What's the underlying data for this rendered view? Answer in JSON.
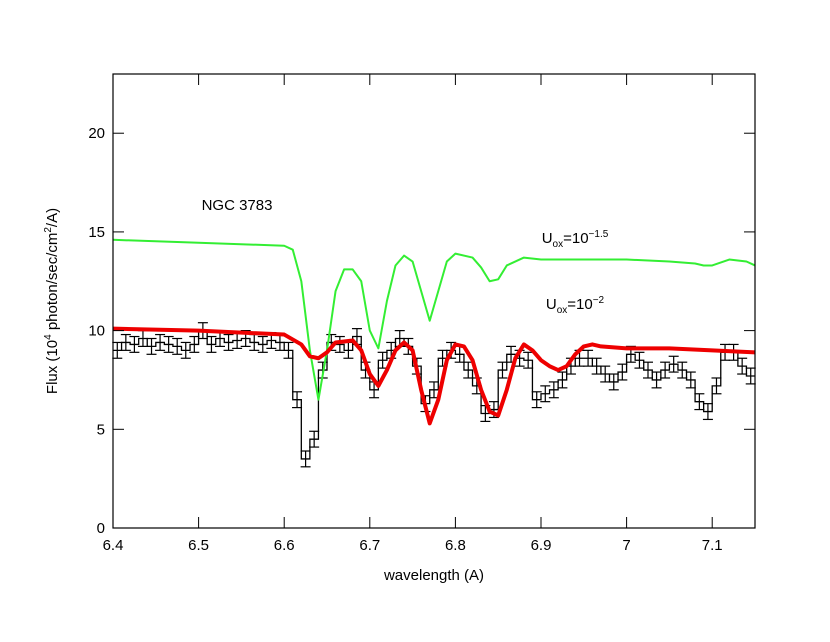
{
  "chart_data": {
    "type": "line",
    "xlabel_parts": [
      "wavelength (A)"
    ],
    "ylabel_parts": [
      "Flux (10",
      "4",
      " photon/sec/cm",
      "2",
      "/A)"
    ],
    "annotations": [
      [
        "NGC 3783"
      ],
      [
        "U",
        "ox",
        "=10",
        "−1.5"
      ],
      [
        "U",
        "ox",
        "=10",
        "−2"
      ]
    ],
    "annotation_color": "#1c1cb4",
    "xlim": [
      6.4,
      7.15
    ],
    "ylim": [
      0,
      23
    ],
    "xticks": [
      6.4,
      6.5,
      6.6,
      6.7,
      6.8,
      6.9,
      7,
      7.1
    ],
    "yticks": [
      0,
      5,
      10,
      15,
      20
    ],
    "series": [
      {
        "color": "#33ee33",
        "width": 2,
        "x": [
          6.4,
          6.5,
          6.6,
          6.61,
          6.62,
          6.63,
          6.64,
          6.65,
          6.66,
          6.67,
          6.68,
          6.69,
          6.7,
          6.71,
          6.72,
          6.73,
          6.74,
          6.75,
          6.76,
          6.77,
          6.78,
          6.79,
          6.8,
          6.82,
          6.83,
          6.84,
          6.85,
          6.86,
          6.88,
          6.9,
          6.95,
          7.0,
          7.05,
          7.08,
          7.09,
          7.1,
          7.12,
          7.14,
          7.15
        ],
        "values": [
          14.6,
          14.45,
          14.3,
          14.1,
          12.5,
          9,
          6.5,
          9,
          12,
          13.1,
          13.1,
          12.5,
          10,
          9.1,
          11.5,
          13.3,
          13.8,
          13.5,
          12,
          10.5,
          12,
          13.5,
          13.9,
          13.7,
          13.2,
          12.5,
          12.6,
          13.3,
          13.7,
          13.6,
          13.6,
          13.6,
          13.5,
          13.4,
          13.3,
          13.3,
          13.6,
          13.5,
          13.3
        ]
      },
      {
        "color": "#ee0000",
        "width": 4,
        "x": [
          6.4,
          6.5,
          6.6,
          6.62,
          6.63,
          6.64,
          6.65,
          6.66,
          6.68,
          6.69,
          6.7,
          6.71,
          6.72,
          6.73,
          6.74,
          6.75,
          6.76,
          6.77,
          6.78,
          6.79,
          6.8,
          6.81,
          6.82,
          6.83,
          6.84,
          6.85,
          6.86,
          6.87,
          6.88,
          6.89,
          6.9,
          6.91,
          6.92,
          6.93,
          6.94,
          6.95,
          6.96,
          6.97,
          7.0,
          7.05,
          7.1,
          7.15
        ],
        "values": [
          10.1,
          10,
          9.8,
          9.3,
          8.7,
          8.6,
          8.9,
          9.4,
          9.5,
          9,
          7.8,
          7.2,
          8,
          9,
          9.4,
          9,
          7,
          5.3,
          6.5,
          8.5,
          9.3,
          9.2,
          8.5,
          7,
          5.9,
          5.7,
          7,
          8.6,
          9.3,
          9,
          8.5,
          8.2,
          8,
          8.2,
          8.8,
          9.2,
          9.3,
          9.2,
          9.1,
          9.1,
          9,
          8.9
        ]
      },
      {
        "color": "#000000",
        "width": 1.3,
        "error": 0.4,
        "histogram": true,
        "x": [
          6.405,
          6.415,
          6.425,
          6.435,
          6.445,
          6.455,
          6.465,
          6.475,
          6.485,
          6.495,
          6.505,
          6.515,
          6.525,
          6.535,
          6.545,
          6.555,
          6.565,
          6.575,
          6.585,
          6.595,
          6.605,
          6.615,
          6.625,
          6.635,
          6.645,
          6.655,
          6.665,
          6.675,
          6.685,
          6.695,
          6.705,
          6.715,
          6.725,
          6.735,
          6.745,
          6.755,
          6.765,
          6.775,
          6.785,
          6.795,
          6.805,
          6.815,
          6.825,
          6.835,
          6.845,
          6.855,
          6.865,
          6.875,
          6.885,
          6.895,
          6.905,
          6.915,
          6.925,
          6.935,
          6.945,
          6.955,
          6.965,
          6.975,
          6.985,
          6.995,
          7.005,
          7.015,
          7.025,
          7.035,
          7.045,
          7.055,
          7.065,
          7.075,
          7.085,
          7.095,
          7.105,
          7.115,
          7.125,
          7.135,
          7.145
        ],
        "values": [
          9.0,
          9.4,
          9.3,
          9.6,
          9.2,
          9.4,
          9.3,
          9.2,
          9.0,
          9.3,
          10.0,
          9.3,
          9.6,
          9.4,
          9.5,
          9.6,
          9.4,
          9.3,
          9.5,
          9.4,
          9.0,
          6.5,
          3.5,
          4.5,
          8.0,
          9.4,
          9.3,
          9.0,
          9.7,
          8.0,
          7.0,
          8.5,
          9.0,
          9.6,
          9.2,
          8.2,
          6.3,
          7.0,
          8.6,
          9.0,
          8.8,
          8.0,
          7.2,
          5.8,
          6.0,
          8.0,
          8.8,
          8.6,
          8.5,
          6.5,
          6.8,
          7.0,
          7.5,
          8.2,
          8.6,
          8.6,
          8.2,
          7.8,
          7.4,
          7.9,
          8.8,
          8.5,
          8.0,
          7.5,
          8.0,
          8.3,
          8.0,
          7.5,
          6.4,
          5.9,
          7.2,
          8.9,
          8.9,
          8.2,
          7.7
        ]
      }
    ]
  }
}
